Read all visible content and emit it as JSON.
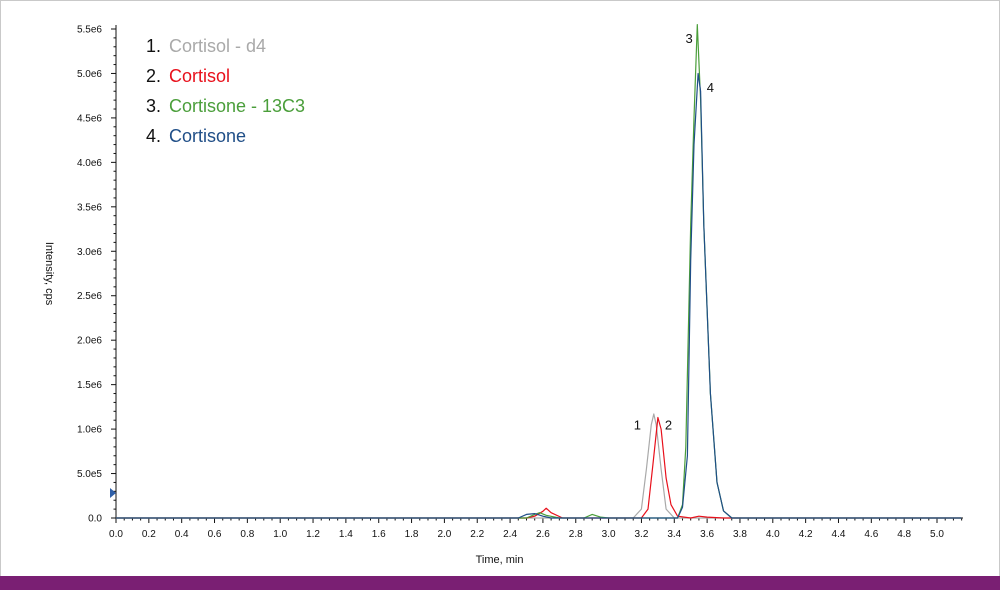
{
  "chart_data": {
    "type": "line",
    "xlabel": "Time, min",
    "ylabel": "Intensity, cps",
    "xlim": [
      0.0,
      5.15
    ],
    "ylim": [
      0,
      5500000.0
    ],
    "x_ticks": [
      "0.0",
      "0.2",
      "0.4",
      "0.6",
      "0.8",
      "1.0",
      "1.2",
      "1.4",
      "1.6",
      "1.8",
      "2.0",
      "2.2",
      "2.4",
      "2.6",
      "2.8",
      "3.0",
      "3.2",
      "3.4",
      "3.6",
      "3.8",
      "4.0",
      "4.2",
      "4.4",
      "4.6",
      "4.8",
      "5.0"
    ],
    "y_ticks": [
      {
        "value": 0,
        "label": "0.0"
      },
      {
        "value": 500000,
        "label": "5.0e5"
      },
      {
        "value": 1000000,
        "label": "1.0e6"
      },
      {
        "value": 1500000,
        "label": "1.5e6"
      },
      {
        "value": 2000000,
        "label": "2.0e6"
      },
      {
        "value": 2500000,
        "label": "2.5e6"
      },
      {
        "value": 3000000,
        "label": "3.0e6"
      },
      {
        "value": 3500000,
        "label": "3.5e6"
      },
      {
        "value": 4000000,
        "label": "4.0e6"
      },
      {
        "value": 4500000,
        "label": "4.5e6"
      },
      {
        "value": 5000000,
        "label": "5.0e6"
      },
      {
        "value": 5500000,
        "label": "5.5e6"
      }
    ],
    "grid": false,
    "legend_position": "top-left",
    "series": [
      {
        "name": "Cortisol - d4",
        "number": "1.",
        "color": "#a9a9a9",
        "points": [
          [
            0,
            0
          ],
          [
            2.5,
            0
          ],
          [
            3.15,
            0
          ],
          [
            3.2,
            100000
          ],
          [
            3.23,
            550000
          ],
          [
            3.26,
            1050000
          ],
          [
            3.275,
            1170000
          ],
          [
            3.29,
            1050000
          ],
          [
            3.32,
            550000
          ],
          [
            3.35,
            100000
          ],
          [
            3.4,
            0
          ],
          [
            5.15,
            0
          ]
        ]
      },
      {
        "name": "Cortisol",
        "number": "2.",
        "color": "#e8101b",
        "points": [
          [
            0,
            0
          ],
          [
            2.5,
            0
          ],
          [
            2.55,
            20000
          ],
          [
            2.6,
            75000
          ],
          [
            2.62,
            110000
          ],
          [
            2.65,
            60000
          ],
          [
            2.72,
            0
          ],
          [
            3.2,
            0
          ],
          [
            3.24,
            100000
          ],
          [
            3.27,
            600000
          ],
          [
            3.3,
            1130000
          ],
          [
            3.32,
            1000000
          ],
          [
            3.35,
            450000
          ],
          [
            3.38,
            150000
          ],
          [
            3.42,
            20000
          ],
          [
            3.5,
            0
          ],
          [
            3.55,
            20000
          ],
          [
            3.6,
            10000
          ],
          [
            3.7,
            0
          ],
          [
            5.15,
            0
          ]
        ]
      },
      {
        "name": "Cortisone - 13C3",
        "number": "3.",
        "color": "#4a9e3a",
        "points": [
          [
            0,
            0
          ],
          [
            2.5,
            0
          ],
          [
            2.55,
            40000
          ],
          [
            2.58,
            60000
          ],
          [
            2.62,
            30000
          ],
          [
            2.7,
            0
          ],
          [
            2.85,
            0
          ],
          [
            2.9,
            40000
          ],
          [
            2.95,
            10000
          ],
          [
            3.0,
            0
          ],
          [
            3.42,
            0
          ],
          [
            3.45,
            150000
          ],
          [
            3.47,
            800000
          ],
          [
            3.5,
            3300000
          ],
          [
            3.52,
            4500000
          ],
          [
            3.54,
            5550000
          ],
          [
            3.56,
            4700000
          ],
          [
            3.58,
            3300000
          ],
          [
            3.62,
            1400000
          ],
          [
            3.66,
            400000
          ],
          [
            3.7,
            80000
          ],
          [
            3.75,
            0
          ],
          [
            5.15,
            0
          ]
        ]
      },
      {
        "name": "Cortisone",
        "number": "4.",
        "color": "#1f4e87",
        "points": [
          [
            0,
            0
          ],
          [
            2.45,
            0
          ],
          [
            2.5,
            40000
          ],
          [
            2.55,
            50000
          ],
          [
            2.6,
            20000
          ],
          [
            2.65,
            0
          ],
          [
            3.42,
            0
          ],
          [
            3.45,
            120000
          ],
          [
            3.48,
            700000
          ],
          [
            3.5,
            2900000
          ],
          [
            3.52,
            4200000
          ],
          [
            3.545,
            5000000
          ],
          [
            3.56,
            4800000
          ],
          [
            3.58,
            3300000
          ],
          [
            3.62,
            1400000
          ],
          [
            3.66,
            400000
          ],
          [
            3.7,
            80000
          ],
          [
            3.75,
            0
          ],
          [
            5.15,
            0
          ]
        ]
      }
    ],
    "peak_labels": [
      {
        "text": "1",
        "x": 3.175,
        "y": 1050000
      },
      {
        "text": "2",
        "x": 3.365,
        "y": 1050000
      },
      {
        "text": "3",
        "x": 3.49,
        "y": 5400000
      },
      {
        "text": "4",
        "x": 3.62,
        "y": 4850000
      }
    ]
  },
  "colors": {
    "bottom_bar": "#7a1f73",
    "axis": "#111111",
    "y_axis_marker": "#2f5fa8"
  }
}
